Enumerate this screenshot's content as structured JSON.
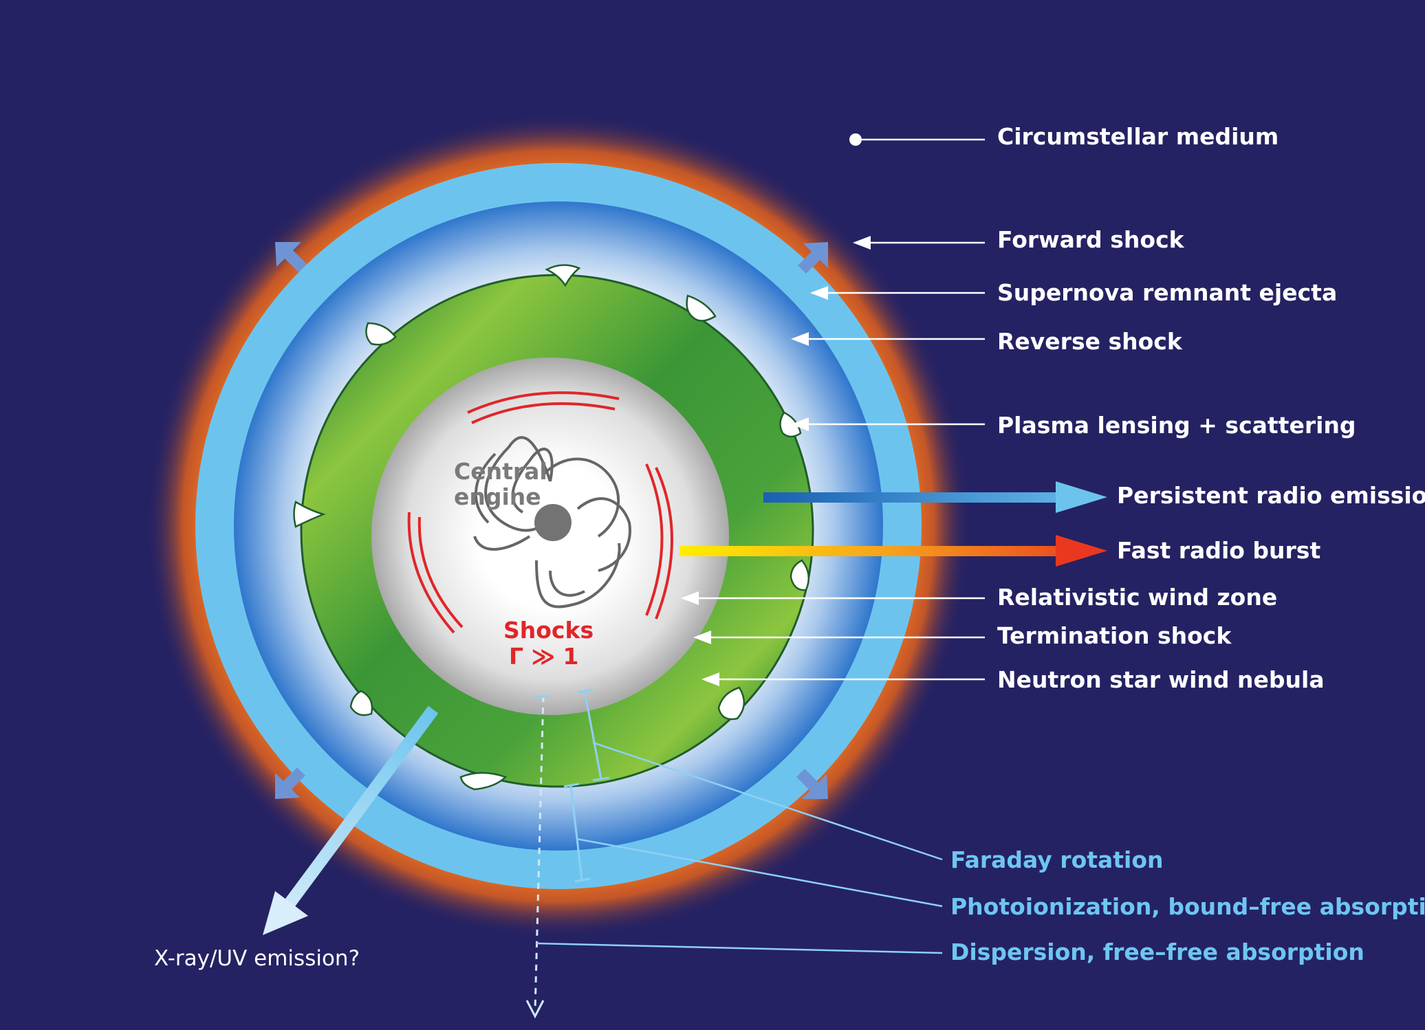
{
  "labels": {
    "circumstellar": "Circumstellar medium",
    "forward_shock": "Forward shock",
    "snr_ejecta": "Supernova remnant ejecta",
    "reverse_shock": "Reverse shock",
    "plasma": "Plasma lensing + scattering",
    "persistent": "Persistent radio emission",
    "frb": "Fast radio burst",
    "rel_wind": "Relativistic wind zone",
    "termination": "Termination shock",
    "nebula": "Neutron star wind nebula",
    "central_1": "Central",
    "central_2": "engine",
    "shocks": "Shocks",
    "gamma": "Γ ≫ 1",
    "faraday": "Faraday rotation",
    "photo": "Photoionization, bound–free absorption",
    "dispersion": "Dispersion, free–free absorption",
    "xray": "X-ray/UV emission?"
  },
  "colors": {
    "background": "#252263",
    "csm_glow": "#f47a20",
    "forward_shell": "#6cc4ee",
    "ejecta_blue": "#3a7fd0",
    "nebula_green": "#3e9a3a",
    "nebula_light": "#8dc63f",
    "wind_zone": "#e6e6e6",
    "shock_red": "#e0262a",
    "propagation_cyan": "#6ec6f2"
  }
}
